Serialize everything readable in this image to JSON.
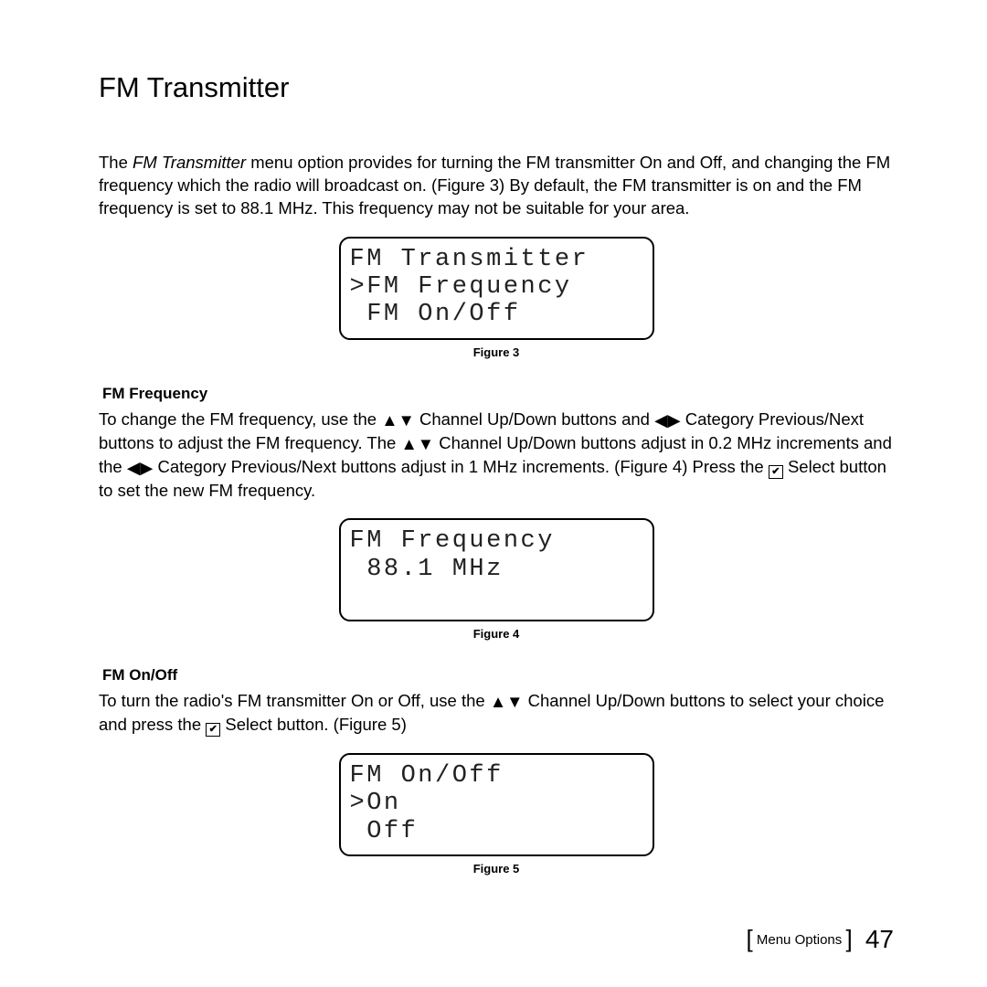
{
  "title": "FM Transmitter",
  "intro_a": "The ",
  "intro_em": "FM Transmitter",
  "intro_b": " menu option provides for turning the FM transmitter On and Off, and changing the FM frequency which the radio will broadcast on. (Figure 3) By default, the FM transmitter is on and the FM frequency is set to 88.1 MHz. This frequency may not be suitable for your area.",
  "fig3": {
    "l1": "FM Transmitter",
    "l2": ">FM Frequency",
    "l3": " FM On/Off",
    "cap": "Figure 3"
  },
  "sec1": {
    "head": "FM Frequency",
    "p1a": "To change the FM frequency, use the ",
    "p1b": " Channel Up/Down buttons and  ",
    "p1c": " Category Previous/Next buttons to adjust the FM frequency. The ",
    "p1d": " Channel Up/Down buttons adjust in 0.2 MHz increments and the ",
    "p1e": " Category Previous/Next buttons adjust in 1 MHz increments. (Figure 4) Press the ",
    "p1f": " Select button to set the new FM frequency."
  },
  "fig4": {
    "l1": "FM Frequency",
    "l2": " 88.1 MHz",
    "l3": " ",
    "cap": "Figure 4"
  },
  "sec2": {
    "head": "FM On/Off",
    "p1a": "To turn the radio's FM transmitter On or Off, use the ",
    "p1b": " Channel Up/Down buttons to select your choice and press the ",
    "p1c": " Select button. (Figure 5)"
  },
  "fig5": {
    "l1": "FM On/Off",
    "l2": ">On",
    "l3": " Off",
    "cap": "Figure 5"
  },
  "footer": {
    "section": "Menu Options",
    "page": "47"
  },
  "glyphs": {
    "up": "▲",
    "down": "▼",
    "left": "◀",
    "right": "▶",
    "sel": "✔"
  }
}
